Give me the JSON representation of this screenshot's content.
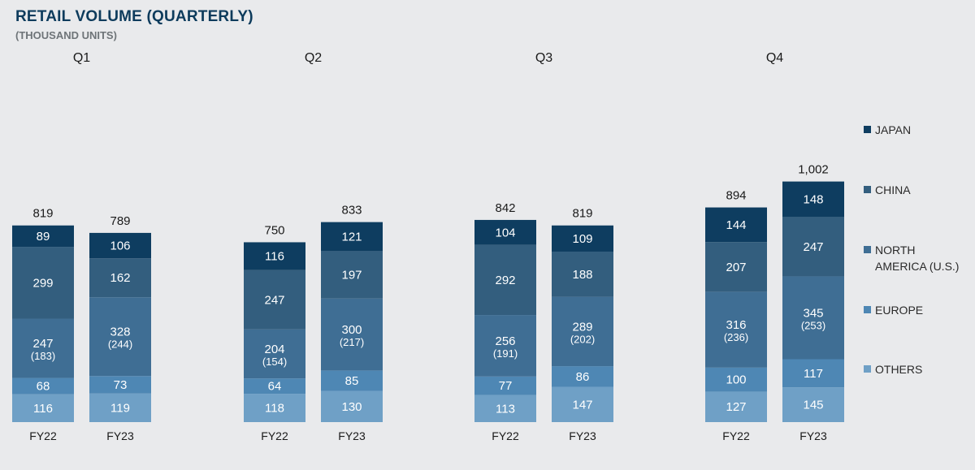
{
  "title": "RETAIL VOLUME (QUARTERLY)",
  "subtitle": "(THOUSAND UNITS)",
  "colors": {
    "background": "#e9eaec",
    "JAPAN": "#0e3d60",
    "CHINA": "#335e7e",
    "NORTH AMERICA (U.S.)": "#3f6e94",
    "EUROPE": "#4e87b4",
    "OTHERS": "#6fa0c6"
  },
  "chart_data": {
    "type": "bar",
    "stacked": true,
    "groups": [
      "Q1",
      "Q2",
      "Q3",
      "Q4"
    ],
    "categories": [
      "FY22",
      "FY23"
    ],
    "legend": [
      "JAPAN",
      "CHINA",
      "NORTH AMERICA (U.S.)",
      "EUROPE",
      "OTHERS"
    ],
    "legend_position": "right",
    "bars": [
      {
        "quarter": "Q1",
        "year": "FY22",
        "total": "819",
        "segments": {
          "OTHERS": 116,
          "EUROPE": 68,
          "NORTH AMERICA (U.S.)": 247,
          "CHINA": 299,
          "JAPAN": 89
        },
        "us": "(183)"
      },
      {
        "quarter": "Q1",
        "year": "FY23",
        "total": "789",
        "segments": {
          "OTHERS": 119,
          "EUROPE": 73,
          "NORTH AMERICA (U.S.)": 328,
          "CHINA": 162,
          "JAPAN": 106
        },
        "us": "(244)"
      },
      {
        "quarter": "Q2",
        "year": "FY22",
        "total": "750",
        "segments": {
          "OTHERS": 118,
          "EUROPE": 64,
          "NORTH AMERICA (U.S.)": 204,
          "CHINA": 247,
          "JAPAN": 116
        },
        "us": "(154)"
      },
      {
        "quarter": "Q2",
        "year": "FY23",
        "total": "833",
        "segments": {
          "OTHERS": 130,
          "EUROPE": 85,
          "NORTH AMERICA (U.S.)": 300,
          "CHINA": 197,
          "JAPAN": 121
        },
        "us": "(217)"
      },
      {
        "quarter": "Q3",
        "year": "FY22",
        "total": "842",
        "segments": {
          "OTHERS": 113,
          "EUROPE": 77,
          "NORTH AMERICA (U.S.)": 256,
          "CHINA": 292,
          "JAPAN": 104
        },
        "us": "(191)"
      },
      {
        "quarter": "Q3",
        "year": "FY23",
        "total": "819",
        "segments": {
          "OTHERS": 147,
          "EUROPE": 86,
          "NORTH AMERICA (U.S.)": 289,
          "CHINA": 188,
          "JAPAN": 109
        },
        "us": "(202)"
      },
      {
        "quarter": "Q4",
        "year": "FY22",
        "total": "894",
        "segments": {
          "OTHERS": 127,
          "EUROPE": 100,
          "NORTH AMERICA (U.S.)": 316,
          "CHINA": 207,
          "JAPAN": 144
        },
        "us": "(236)"
      },
      {
        "quarter": "Q4",
        "year": "FY23",
        "total": "1,002",
        "segments": {
          "OTHERS": 145,
          "EUROPE": 117,
          "NORTH AMERICA (U.S.)": 345,
          "CHINA": 247,
          "JAPAN": 148
        },
        "us": "(253)"
      }
    ]
  }
}
